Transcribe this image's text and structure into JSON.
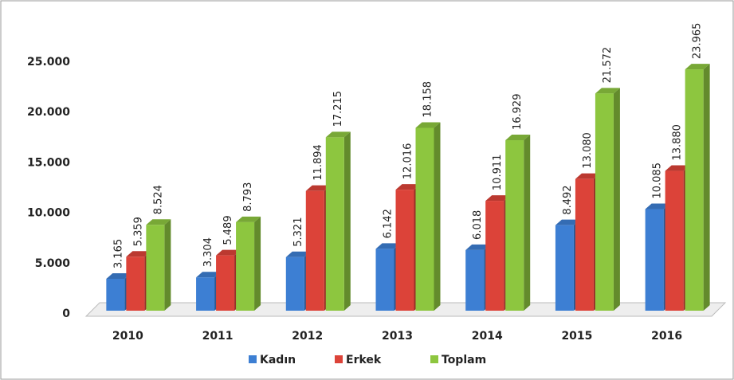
{
  "chart_data": {
    "type": "bar3d",
    "categories": [
      "2010",
      "2011",
      "2012",
      "2013",
      "2014",
      "2015",
      "2016"
    ],
    "series": [
      {
        "name": "Kadın",
        "color": "#3d7fd3",
        "values": [
          3165,
          3304,
          5321,
          6142,
          6018,
          8492,
          10085
        ],
        "value_labels": [
          "3.165",
          "3.304",
          "5.321",
          "6.142",
          "6.018",
          "8.492",
          "10.085"
        ]
      },
      {
        "name": "Erkek",
        "color": "#dc4339",
        "values": [
          5359,
          5489,
          11894,
          12016,
          10911,
          13080,
          13880
        ],
        "value_labels": [
          "5.359",
          "5.489",
          "11.894",
          "12.016",
          "10.911",
          "13.080",
          "13.880"
        ]
      },
      {
        "name": "Toplam",
        "color": "#8dc63f",
        "values": [
          8524,
          8793,
          17215,
          18158,
          16929,
          21572,
          23965
        ],
        "value_labels": [
          "8.524",
          "8.793",
          "17.215",
          "18.158",
          "16.929",
          "21.572",
          "23.965"
        ]
      }
    ],
    "ylim": [
      0,
      25000
    ],
    "yticks": [
      0,
      {
        "value": 5000,
        "label": "5.000"
      },
      {
        "value": 10000,
        "label": "10.000"
      },
      {
        "value": 15000,
        "label": "15.000"
      },
      {
        "value": 20000,
        "label": "20.000"
      },
      {
        "value": 25000,
        "label": "25.000"
      }
    ],
    "legend": "bottom"
  }
}
